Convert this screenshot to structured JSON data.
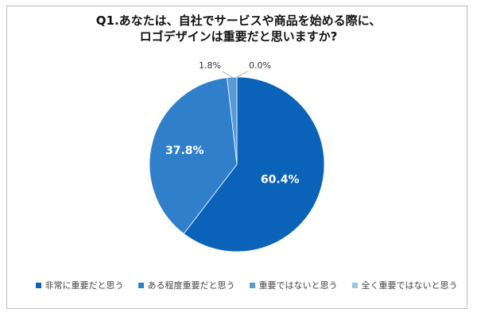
{
  "chart_data": {
    "type": "pie",
    "title_lines": [
      "Q1.あなたは、自社でサービスや商品を始める際に、",
      "ロゴデザインは重要だと思いますか?"
    ],
    "slices": [
      {
        "label": "非常に重要だと思う",
        "value": 60.4,
        "display": "60.4%",
        "color": "#0a63b8"
      },
      {
        "label": "ある程度重要だと思う",
        "value": 37.8,
        "display": "37.8%",
        "color": "#2f7fcb"
      },
      {
        "label": "重要ではないと思う",
        "value": 1.8,
        "display": "1.8%",
        "color": "#5a9ad6"
      },
      {
        "label": "全く重要ではないと思う",
        "value": 0.0,
        "display": "0.0%",
        "color": "#9cc4e8"
      }
    ],
    "legend_position": "bottom"
  }
}
